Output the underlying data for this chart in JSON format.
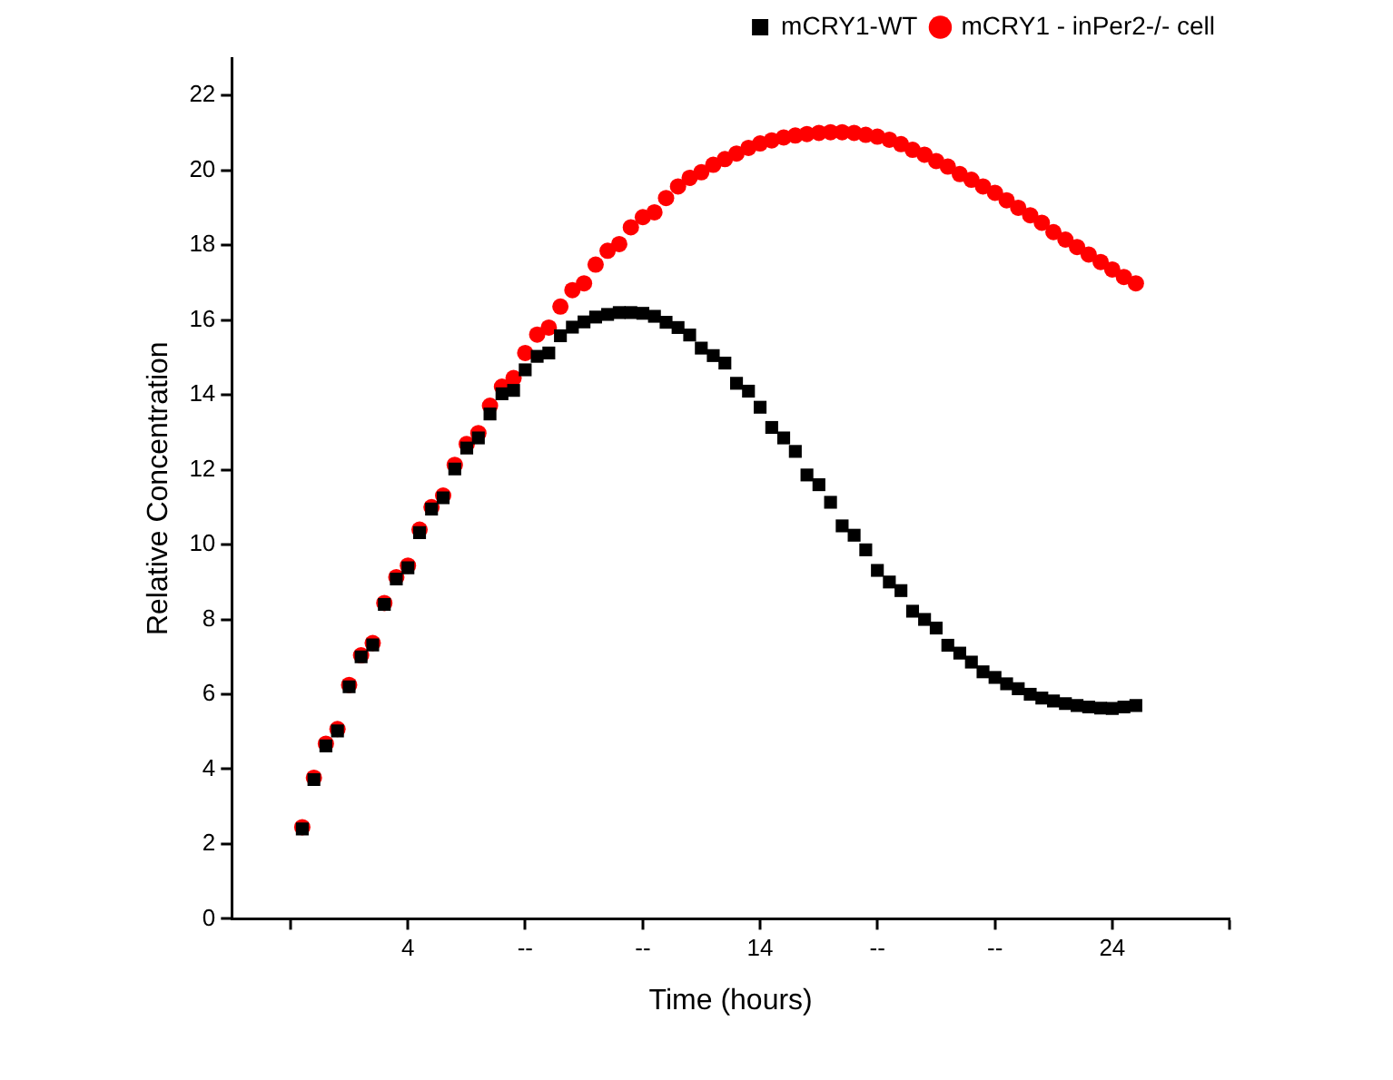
{
  "chart_data": {
    "type": "scatter",
    "xlabel": "Time (hours)",
    "ylabel": "Relative Concentration",
    "x": [
      1,
      1.33,
      1.67,
      2,
      2.33,
      2.67,
      3,
      3.33,
      3.67,
      4,
      4.33,
      4.67,
      5,
      5.33,
      5.67,
      6,
      6.33,
      6.67,
      7,
      7.33,
      7.67,
      8,
      8.33,
      8.67,
      9,
      9.33,
      9.67,
      10,
      10.33,
      10.67,
      11,
      11.33,
      11.67,
      12,
      12.33,
      12.67,
      13,
      13.33,
      13.67,
      14,
      14.33,
      14.67,
      15,
      15.33,
      15.67,
      16,
      16.33,
      16.67,
      17,
      17.33,
      17.67,
      18,
      18.33,
      18.67,
      19,
      19.33,
      19.67,
      20,
      20.33,
      20.67,
      21,
      21.33,
      21.67,
      22,
      22.33,
      22.67,
      23,
      23.33,
      23.67,
      24,
      24.33,
      24.67
    ],
    "series": [
      {
        "name": "mCRY1-WT",
        "color": "#000000",
        "marker": "square",
        "values": [
          2.4,
          3.72,
          4.62,
          5.02,
          6.2,
          7.0,
          7.32,
          8.4,
          9.08,
          9.38,
          10.32,
          10.95,
          11.25,
          12.02,
          12.58,
          12.85,
          13.49,
          14.03,
          14.12,
          14.67,
          15.03,
          15.12,
          15.58,
          15.81,
          15.95,
          16.08,
          16.15,
          16.2,
          16.2,
          16.18,
          16.1,
          15.94,
          15.8,
          15.6,
          15.25,
          15.05,
          14.85,
          14.31,
          14.1,
          13.67,
          13.13,
          12.85,
          12.49,
          11.86,
          11.6,
          11.13,
          10.5,
          10.25,
          9.86,
          9.31,
          9.0,
          8.77,
          8.22,
          8.0,
          7.77,
          7.31,
          7.1,
          6.86,
          6.6,
          6.45,
          6.28,
          6.15,
          6.0,
          5.9,
          5.82,
          5.75,
          5.7,
          5.66,
          5.63,
          5.62,
          5.66,
          5.7
        ]
      },
      {
        "name": "mCRY1 - inPer2-/- cell",
        "color": "#ff0000",
        "marker": "circle",
        "values": [
          2.45,
          3.77,
          4.68,
          5.07,
          6.25,
          7.04,
          7.37,
          8.44,
          9.13,
          9.44,
          10.4,
          11.0,
          11.31,
          12.13,
          12.69,
          12.98,
          13.71,
          14.22,
          14.45,
          15.12,
          15.61,
          15.8,
          16.36,
          16.8,
          16.98,
          17.48,
          17.85,
          18.03,
          18.48,
          18.75,
          18.88,
          19.26,
          19.57,
          19.8,
          19.95,
          20.15,
          20.3,
          20.45,
          20.6,
          20.72,
          20.8,
          20.88,
          20.93,
          20.97,
          21.0,
          21.02,
          21.02,
          21.0,
          20.95,
          20.9,
          20.82,
          20.7,
          20.55,
          20.42,
          20.25,
          20.1,
          19.9,
          19.75,
          19.57,
          19.4,
          19.2,
          19.0,
          18.8,
          18.6,
          18.35,
          18.15,
          17.95,
          17.75,
          17.55,
          17.35,
          17.15,
          16.98
        ]
      }
    ],
    "xlim": [
      -1,
      27.33
    ],
    "xticks": [
      {
        "value": 0.67,
        "label": null
      },
      4,
      {
        "value": 7.33,
        "label": "--"
      },
      {
        "value": 10.67,
        "label": "--"
      },
      14,
      {
        "value": 17.33,
        "label": "--"
      },
      {
        "value": 20.67,
        "label": "--"
      },
      24,
      {
        "value": 27.33,
        "label": null
      }
    ],
    "ylim": [
      0,
      23
    ],
    "yticks": [
      0,
      2,
      4,
      6,
      8,
      10,
      12,
      14,
      16,
      18,
      20,
      22
    ],
    "grid": false,
    "legend": "top right"
  }
}
